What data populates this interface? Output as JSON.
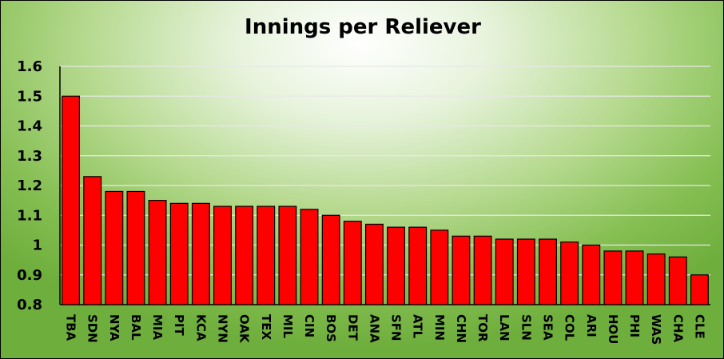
{
  "chart_data": {
    "type": "bar",
    "title": "Innings per Reliever",
    "xlabel": "",
    "ylabel": "",
    "ylim": [
      0.8,
      1.6
    ],
    "yticks": [
      "0.8",
      "0.9",
      "1",
      "1.1",
      "1.2",
      "1.3",
      "1.4",
      "1.5",
      "1.6"
    ],
    "grid": true,
    "bar_color": "#ff0000",
    "categories": [
      "TBA",
      "SDN",
      "NYA",
      "BAL",
      "MIA",
      "PIT",
      "KCA",
      "NYN",
      "OAK",
      "TEX",
      "MIL",
      "CIN",
      "BOS",
      "DET",
      "ANA",
      "SFN",
      "ATL",
      "MIN",
      "CHN",
      "TOR",
      "LAN",
      "SLN",
      "SEA",
      "COL",
      "ARI",
      "HOU",
      "PHI",
      "WAS",
      "CHA",
      "CLE"
    ],
    "values": [
      1.5,
      1.23,
      1.18,
      1.18,
      1.15,
      1.14,
      1.14,
      1.13,
      1.13,
      1.13,
      1.13,
      1.12,
      1.1,
      1.08,
      1.07,
      1.06,
      1.06,
      1.05,
      1.03,
      1.03,
      1.02,
      1.02,
      1.02,
      1.01,
      1.0,
      0.98,
      0.98,
      0.97,
      0.96,
      0.9
    ]
  }
}
